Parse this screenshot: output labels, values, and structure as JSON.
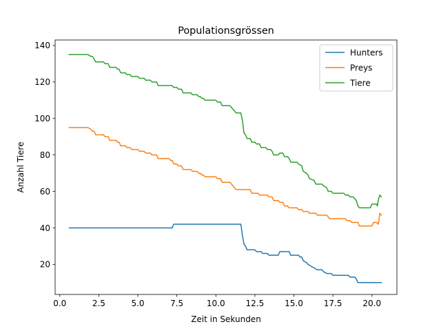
{
  "chart_data": {
    "type": "line",
    "title": "Populationsgrössen",
    "xlabel": "Zeit in Sekunden",
    "ylabel": "Anzahl Tiere",
    "xlim": [
      -0.3,
      21.6
    ],
    "ylim": [
      3.5,
      143
    ],
    "x_ticks": [
      0.0,
      2.5,
      5.0,
      7.5,
      10.0,
      12.5,
      15.0,
      17.5,
      20.0
    ],
    "x_tick_labels": [
      "0.0",
      "2.5",
      "5.0",
      "7.5",
      "10.0",
      "12.5",
      "15.0",
      "17.5",
      "20.0"
    ],
    "y_ticks": [
      20,
      40,
      60,
      80,
      100,
      120,
      140
    ],
    "y_tick_labels": [
      "20",
      "40",
      "60",
      "80",
      "100",
      "120",
      "140"
    ],
    "grid": false,
    "legend_position": "top-right",
    "series": [
      {
        "name": "Hunters",
        "color": "#1f77b4",
        "points": [
          [
            0.6,
            40
          ],
          [
            7.2,
            40
          ],
          [
            7.3,
            42
          ],
          [
            11.6,
            42
          ],
          [
            11.7,
            36
          ],
          [
            11.8,
            31
          ],
          [
            11.9,
            30
          ],
          [
            12.0,
            28
          ],
          [
            12.5,
            28
          ],
          [
            12.6,
            27
          ],
          [
            12.9,
            27
          ],
          [
            13.0,
            26
          ],
          [
            13.3,
            26
          ],
          [
            13.4,
            25
          ],
          [
            14.0,
            25
          ],
          [
            14.1,
            27
          ],
          [
            14.7,
            27
          ],
          [
            14.8,
            25
          ],
          [
            15.3,
            25
          ],
          [
            15.4,
            24
          ],
          [
            15.5,
            24
          ],
          [
            15.6,
            22
          ],
          [
            15.8,
            21
          ],
          [
            15.9,
            20
          ],
          [
            16.1,
            19
          ],
          [
            16.3,
            18
          ],
          [
            16.5,
            17
          ],
          [
            16.8,
            17
          ],
          [
            16.9,
            16
          ],
          [
            17.1,
            15
          ],
          [
            17.4,
            15
          ],
          [
            17.5,
            14
          ],
          [
            18.5,
            14
          ],
          [
            18.6,
            13
          ],
          [
            18.9,
            13
          ],
          [
            19.0,
            12
          ],
          [
            19.1,
            10
          ],
          [
            20.6,
            10
          ]
        ]
      },
      {
        "name": "Preys",
        "color": "#ff7f0e",
        "points": [
          [
            0.6,
            95
          ],
          [
            1.8,
            95
          ],
          [
            2.0,
            94
          ],
          [
            2.1,
            93
          ],
          [
            2.2,
            93
          ],
          [
            2.3,
            91
          ],
          [
            2.8,
            91
          ],
          [
            2.9,
            90
          ],
          [
            3.1,
            90
          ],
          [
            3.2,
            88
          ],
          [
            3.6,
            88
          ],
          [
            3.7,
            87
          ],
          [
            3.8,
            87
          ],
          [
            3.9,
            85
          ],
          [
            4.2,
            85
          ],
          [
            4.3,
            84
          ],
          [
            4.5,
            84
          ],
          [
            4.6,
            83
          ],
          [
            5.0,
            83
          ],
          [
            5.1,
            82
          ],
          [
            5.4,
            82
          ],
          [
            5.5,
            81
          ],
          [
            5.8,
            81
          ],
          [
            5.9,
            80
          ],
          [
            6.2,
            80
          ],
          [
            6.3,
            78
          ],
          [
            7.0,
            78
          ],
          [
            7.1,
            77
          ],
          [
            7.2,
            77
          ],
          [
            7.3,
            75
          ],
          [
            7.5,
            75
          ],
          [
            7.6,
            74
          ],
          [
            7.8,
            74
          ],
          [
            7.9,
            72
          ],
          [
            8.4,
            72
          ],
          [
            8.5,
            71
          ],
          [
            8.8,
            71
          ],
          [
            8.9,
            70
          ],
          [
            9.0,
            70
          ],
          [
            9.1,
            69
          ],
          [
            9.2,
            69
          ],
          [
            9.3,
            68
          ],
          [
            10.0,
            68
          ],
          [
            10.1,
            67
          ],
          [
            10.3,
            67
          ],
          [
            10.4,
            65
          ],
          [
            10.9,
            65
          ],
          [
            11.0,
            64
          ],
          [
            11.1,
            63
          ],
          [
            11.2,
            62
          ],
          [
            11.3,
            61
          ],
          [
            12.2,
            61
          ],
          [
            12.3,
            59
          ],
          [
            12.7,
            59
          ],
          [
            12.8,
            58
          ],
          [
            13.3,
            58
          ],
          [
            13.4,
            57
          ],
          [
            13.6,
            57
          ],
          [
            13.7,
            55
          ],
          [
            14.0,
            55
          ],
          [
            14.1,
            54
          ],
          [
            14.3,
            54
          ],
          [
            14.4,
            52
          ],
          [
            14.6,
            52
          ],
          [
            14.7,
            51
          ],
          [
            15.2,
            51
          ],
          [
            15.3,
            50
          ],
          [
            15.5,
            50
          ],
          [
            15.6,
            49
          ],
          [
            15.9,
            49
          ],
          [
            16.0,
            48
          ],
          [
            16.4,
            48
          ],
          [
            16.5,
            47
          ],
          [
            17.1,
            47
          ],
          [
            17.2,
            46
          ],
          [
            17.3,
            45
          ],
          [
            18.3,
            45
          ],
          [
            18.4,
            44
          ],
          [
            18.6,
            44
          ],
          [
            18.7,
            43
          ],
          [
            19.1,
            43
          ],
          [
            19.2,
            41
          ],
          [
            20.0,
            41
          ],
          [
            20.1,
            43
          ],
          [
            20.3,
            43
          ],
          [
            20.4,
            42
          ],
          [
            20.45,
            44
          ],
          [
            20.5,
            48
          ],
          [
            20.6,
            47
          ]
        ]
      },
      {
        "name": "Tiere",
        "color": "#2ca02c",
        "points": [
          [
            0.6,
            135
          ],
          [
            1.8,
            135
          ],
          [
            2.0,
            134
          ],
          [
            2.1,
            134
          ],
          [
            2.3,
            131
          ],
          [
            2.8,
            131
          ],
          [
            2.9,
            130
          ],
          [
            3.1,
            130
          ],
          [
            3.2,
            128
          ],
          [
            3.6,
            128
          ],
          [
            3.7,
            127
          ],
          [
            3.8,
            127
          ],
          [
            3.9,
            125
          ],
          [
            4.2,
            125
          ],
          [
            4.3,
            124
          ],
          [
            4.5,
            124
          ],
          [
            4.6,
            123
          ],
          [
            5.0,
            123
          ],
          [
            5.1,
            122
          ],
          [
            5.4,
            122
          ],
          [
            5.5,
            121
          ],
          [
            5.8,
            121
          ],
          [
            5.9,
            120
          ],
          [
            6.2,
            120
          ],
          [
            6.3,
            118
          ],
          [
            7.2,
            118
          ],
          [
            7.3,
            117
          ],
          [
            7.5,
            117
          ],
          [
            7.6,
            116
          ],
          [
            7.8,
            116
          ],
          [
            7.9,
            114
          ],
          [
            8.4,
            114
          ],
          [
            8.5,
            113
          ],
          [
            8.8,
            113
          ],
          [
            8.9,
            112
          ],
          [
            9.0,
            112
          ],
          [
            9.1,
            111
          ],
          [
            9.2,
            111
          ],
          [
            9.3,
            110
          ],
          [
            10.0,
            110
          ],
          [
            10.1,
            109
          ],
          [
            10.3,
            109
          ],
          [
            10.4,
            107
          ],
          [
            10.9,
            107
          ],
          [
            11.0,
            106
          ],
          [
            11.1,
            105
          ],
          [
            11.2,
            104
          ],
          [
            11.3,
            103
          ],
          [
            11.6,
            103
          ],
          [
            11.7,
            99
          ],
          [
            11.8,
            92
          ],
          [
            11.9,
            91
          ],
          [
            12.0,
            89
          ],
          [
            12.2,
            89
          ],
          [
            12.3,
            87
          ],
          [
            12.5,
            87
          ],
          [
            12.6,
            86
          ],
          [
            12.8,
            86
          ],
          [
            12.9,
            84
          ],
          [
            13.2,
            84
          ],
          [
            13.3,
            83
          ],
          [
            13.5,
            83
          ],
          [
            13.6,
            82
          ],
          [
            13.7,
            80
          ],
          [
            14.0,
            80
          ],
          [
            14.1,
            81
          ],
          [
            14.3,
            81
          ],
          [
            14.4,
            79
          ],
          [
            14.6,
            79
          ],
          [
            14.7,
            78
          ],
          [
            14.8,
            76
          ],
          [
            15.2,
            76
          ],
          [
            15.3,
            75
          ],
          [
            15.5,
            74
          ],
          [
            15.6,
            71
          ],
          [
            15.8,
            70
          ],
          [
            15.9,
            69
          ],
          [
            16.0,
            67
          ],
          [
            16.3,
            66
          ],
          [
            16.4,
            64
          ],
          [
            16.8,
            64
          ],
          [
            16.9,
            63
          ],
          [
            17.1,
            62
          ],
          [
            17.2,
            60
          ],
          [
            17.4,
            60
          ],
          [
            17.5,
            59
          ],
          [
            18.2,
            59
          ],
          [
            18.3,
            58
          ],
          [
            18.5,
            58
          ],
          [
            18.6,
            57
          ],
          [
            18.8,
            57
          ],
          [
            18.9,
            56
          ],
          [
            19.0,
            55
          ],
          [
            19.1,
            52
          ],
          [
            19.2,
            51
          ],
          [
            19.9,
            51
          ],
          [
            20.0,
            53
          ],
          [
            20.3,
            53
          ],
          [
            20.35,
            52
          ],
          [
            20.4,
            55
          ],
          [
            20.5,
            58
          ],
          [
            20.6,
            57
          ]
        ]
      }
    ]
  }
}
